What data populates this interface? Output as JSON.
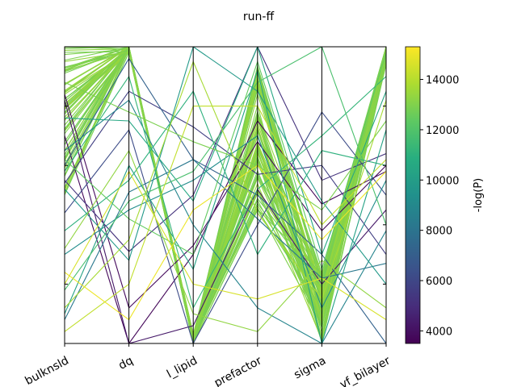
{
  "chart_data": {
    "type": "parallel-coordinates",
    "title": "run-ff",
    "axes": [
      "bulknsld",
      "dq",
      "l_lipid",
      "prefactor",
      "sigma",
      "vf_bilayer"
    ],
    "normalized_range": [
      0,
      1
    ],
    "colorbar": {
      "label": "-log(P)",
      "colormap": "viridis",
      "range": [
        3500,
        15300
      ],
      "ticks": [
        "4000",
        "6000",
        "8000",
        "10000",
        "12000",
        "14000"
      ]
    },
    "series_note_values": "each line is one sample; values are fractions of each axis range (0 = bottom, 1 = top)",
    "lines": [
      {
        "c": 3700,
        "v": [
          0.7,
          0.0,
          0.3,
          0.75,
          0.47,
          0.58
        ]
      },
      {
        "c": 3800,
        "v": [
          0.84,
          0.12,
          0.33,
          0.68,
          0.38,
          0.6
        ]
      },
      {
        "c": 4300,
        "v": [
          0.82,
          0.0,
          0.06,
          0.52,
          0.2,
          0.45
        ]
      },
      {
        "c": 5200,
        "v": [
          0.55,
          0.31,
          0.5,
          1.0,
          0.55,
          0.64
        ]
      },
      {
        "c": 5700,
        "v": [
          0.54,
          0.85,
          0.73,
          0.57,
          0.6,
          0.3
        ]
      },
      {
        "c": 6200,
        "v": [
          0.44,
          0.72,
          0.0,
          0.4,
          0.78,
          0.5
        ]
      },
      {
        "c": 7200,
        "v": [
          0.6,
          0.96,
          0.62,
          0.5,
          0.3,
          0.0
        ]
      },
      {
        "c": 8200,
        "v": [
          0.08,
          0.51,
          0.62,
          0.42,
          0.22,
          0.27
        ]
      },
      {
        "c": 8800,
        "v": [
          0.65,
          0.82,
          0.4,
          0.12,
          0.0,
          0.38
        ]
      },
      {
        "c": 9200,
        "v": [
          0.3,
          0.45,
          0.55,
          0.7,
          0.12,
          0.55
        ]
      },
      {
        "c": 9800,
        "v": [
          0.52,
          0.28,
          1.0,
          0.85,
          0.48,
          0.2
        ]
      },
      {
        "c": 10200,
        "v": [
          0.1,
          0.6,
          0.25,
          0.92,
          0.0,
          0.72
        ]
      },
      {
        "c": 10500,
        "v": [
          0.76,
          0.75,
          0.48,
          1.0,
          0.3,
          0.85
        ]
      },
      {
        "c": 11000,
        "v": [
          0.38,
          0.55,
          0.85,
          0.3,
          0.65,
          0.6
        ]
      },
      {
        "c": 11200,
        "v": [
          0.58,
          0.9,
          0.12,
          0.52,
          0.7,
          0.9
        ]
      },
      {
        "c": 11800,
        "v": [
          0.18,
          0.48,
          0.58,
          0.88,
          1.0,
          0.4
        ]
      },
      {
        "c": 12400,
        "v": [
          0.62,
          0.42,
          0.3,
          0.95,
          0.25,
          0.98
        ]
      },
      {
        "c": 12900,
        "v": [
          0.88,
          0.78,
          0.68,
          0.6,
          0.45,
          0.75
        ]
      },
      {
        "c": 13300,
        "v": [
          0.32,
          0.65,
          0.1,
          0.04,
          0.28,
          0.12
        ]
      },
      {
        "c": 13700,
        "v": [
          0.12,
          0.35,
          0.95,
          0.44,
          0.15,
          0.82
        ]
      },
      {
        "c": 14200,
        "v": [
          0.04,
          0.2,
          0.8,
          0.8,
          0.4,
          0.62
        ]
      },
      {
        "c": 14600,
        "v": [
          0.2,
          0.58,
          0.2,
          0.15,
          0.22,
          0.08
        ]
      },
      {
        "c": 15000,
        "v": [
          0.24,
          0.08,
          0.45,
          0.6,
          0.35,
          0.58
        ]
      }
    ],
    "cluster": {
      "c": 13100,
      "base": [
        1.0,
        1.0,
        0.01,
        0.7,
        0.12,
        1.0
      ],
      "spread": [
        0.5,
        0.02,
        0.02,
        0.25,
        0.12,
        0.06
      ],
      "count": 70
    },
    "axis_ticks_left": [
      0.2,
      0.6,
      0.8
    ],
    "axis_ticks_right": [
      0.2,
      0.4,
      0.6,
      0.8
    ]
  }
}
